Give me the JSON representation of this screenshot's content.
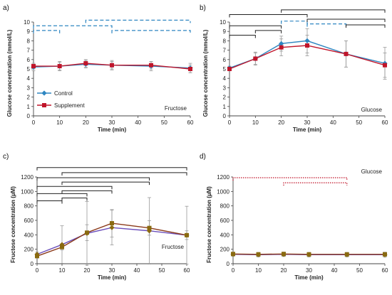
{
  "legend": [
    {
      "name": "Control",
      "color": "#2e86c1",
      "marker": "diamond"
    },
    {
      "name": "Supplement",
      "color": "#c0152a",
      "marker": "square"
    }
  ],
  "chart_data": [
    {
      "panel_label": "a)",
      "type": "line",
      "xlabel": "Time (min)",
      "ylabel": "Glucose concentration (mmol/L)",
      "annotation": "Fructose",
      "xlim": [
        0,
        60
      ],
      "ylim": [
        0,
        10
      ],
      "xticks": [
        0,
        10,
        20,
        30,
        40,
        50,
        60
      ],
      "yticks": [
        0,
        1,
        2,
        3,
        4,
        5,
        6,
        7,
        8,
        9,
        10
      ],
      "x": [
        0,
        10,
        20,
        30,
        45,
        60
      ],
      "series": [
        {
          "name": "Control",
          "values": [
            5.2,
            5.3,
            5.5,
            5.4,
            5.3,
            5.1
          ],
          "err": [
            0.4,
            0.5,
            0.4,
            0.5,
            0.5,
            0.5
          ]
        },
        {
          "name": "Supplement",
          "values": [
            5.3,
            5.3,
            5.6,
            5.4,
            5.4,
            5.0
          ],
          "err": [
            0.3,
            0.4,
            0.4,
            0.4,
            0.4,
            0.4
          ]
        }
      ],
      "brackets": [
        {
          "x1": 0,
          "x2": 10,
          "y": 9.1,
          "style": "blue-dashed"
        },
        {
          "x1": 0,
          "x2": 30,
          "y": 9.6,
          "style": "blue-dashed"
        },
        {
          "x1": 30,
          "x2": 60,
          "y": 9.1,
          "style": "blue-dashed"
        },
        {
          "x1": 20,
          "x2": 60,
          "y": 10.2,
          "style": "blue-dashed"
        }
      ]
    },
    {
      "panel_label": "b)",
      "type": "line",
      "xlabel": "Time (min)",
      "ylabel": "Glucose concentration (mmol/L)",
      "annotation": "Glucose",
      "xlim": [
        0,
        60
      ],
      "ylim": [
        0,
        10
      ],
      "xticks": [
        0,
        10,
        20,
        30,
        40,
        50,
        60
      ],
      "yticks": [
        0,
        1,
        2,
        3,
        4,
        5,
        6,
        7,
        8,
        9,
        10
      ],
      "x": [
        0,
        10,
        20,
        30,
        45,
        60
      ],
      "series": [
        {
          "name": "Control",
          "values": [
            5.1,
            6.1,
            7.7,
            8.0,
            6.6,
            5.6
          ],
          "err": [
            0.2,
            0.7,
            0.8,
            1.3,
            1.4,
            1.7
          ]
        },
        {
          "name": "Supplement",
          "values": [
            5.0,
            6.1,
            7.3,
            7.5,
            6.6,
            5.4
          ],
          "err": [
            0.2,
            0.6,
            0.9,
            1.1,
            1.4,
            1.3
          ]
        }
      ],
      "brackets": [
        {
          "x1": 0,
          "x2": 10,
          "y": 8.6,
          "style": "black-solid"
        },
        {
          "x1": 10,
          "x2": 20,
          "y": 9.1,
          "style": "black-solid"
        },
        {
          "x1": 0,
          "x2": 20,
          "y": 9.6,
          "style": "black-solid"
        },
        {
          "x1": 20,
          "x2": 30,
          "y": 10.1,
          "style": "blue-dashed"
        },
        {
          "x1": 30,
          "x2": 45,
          "y": 9.8,
          "style": "blue-dashed"
        },
        {
          "x1": 30,
          "x2": 60,
          "y": 10.3,
          "style": "black-solid"
        },
        {
          "x1": 0,
          "x2": 30,
          "y": 10.8,
          "style": "black-solid"
        },
        {
          "x1": 20,
          "x2": 60,
          "y": 11.3,
          "style": "black-solid"
        },
        {
          "x1": 45,
          "x2": 60,
          "y": 9.7,
          "style": "black-solid"
        }
      ]
    },
    {
      "panel_label": "c)",
      "type": "line",
      "xlabel": "Time (min)",
      "ylabel": "Fructose concentration (µM)",
      "annotation": "Fructose",
      "xlim": [
        0,
        60
      ],
      "ylim": [
        0,
        1200
      ],
      "xticks": [
        0,
        10,
        20,
        30,
        40,
        50,
        60
      ],
      "yticks": [
        0,
        200,
        400,
        600,
        800,
        1000,
        1200
      ],
      "x": [
        0,
        10,
        20,
        30,
        45,
        60
      ],
      "series": [
        {
          "name": "Control",
          "values": [
            130,
            265,
            420,
            500,
            455,
            395
          ],
          "err": [
            30,
            260,
            440,
            240,
            460,
            400
          ]
        },
        {
          "name": "Supplement",
          "values": [
            105,
            230,
            430,
            560,
            495,
            395
          ],
          "err": [
            25,
            40,
            110,
            190,
            100,
            60
          ]
        }
      ],
      "brackets": [
        {
          "x1": 0,
          "x2": 10,
          "y": 870,
          "style": "black-solid"
        },
        {
          "x1": 0,
          "x2": 20,
          "y": 970,
          "style": "black-solid"
        },
        {
          "x1": 10,
          "x2": 20,
          "y": 910,
          "style": "black-solid"
        },
        {
          "x1": 0,
          "x2": 30,
          "y": 1070,
          "style": "black-solid"
        },
        {
          "x1": 10,
          "x2": 30,
          "y": 1010,
          "style": "black-solid"
        },
        {
          "x1": 10,
          "x2": 45,
          "y": 1130,
          "style": "black-solid"
        },
        {
          "x1": 0,
          "x2": 45,
          "y": 1190,
          "style": "black-solid"
        },
        {
          "x1": 10,
          "x2": 60,
          "y": 1260,
          "style": "black-solid"
        },
        {
          "x1": 0,
          "x2": 60,
          "y": 1330,
          "style": "black-solid"
        }
      ]
    },
    {
      "panel_label": "d)",
      "type": "line",
      "xlabel": "Time (min)",
      "ylabel": "Fructose concentration (µM)",
      "annotation": "Glucose",
      "xlim": [
        0,
        60
      ],
      "ylim": [
        0,
        1200
      ],
      "xticks": [
        0,
        10,
        20,
        30,
        40,
        50,
        60
      ],
      "yticks": [
        0,
        200,
        400,
        600,
        800,
        1000,
        1200
      ],
      "x": [
        0,
        10,
        20,
        30,
        45,
        60
      ],
      "series": [
        {
          "name": "Control",
          "values": [
            130,
            125,
            130,
            125,
            125,
            125
          ],
          "err": [
            25,
            30,
            30,
            30,
            30,
            35
          ]
        },
        {
          "name": "Supplement",
          "values": [
            135,
            130,
            135,
            130,
            130,
            130
          ],
          "err": [
            20,
            25,
            25,
            25,
            25,
            25
          ]
        }
      ],
      "brackets": [
        {
          "x1": 0,
          "x2": 45,
          "y": 1190,
          "style": "red-dotted"
        },
        {
          "x1": 20,
          "x2": 45,
          "y": 1120,
          "style": "red-dotted"
        }
      ]
    }
  ]
}
